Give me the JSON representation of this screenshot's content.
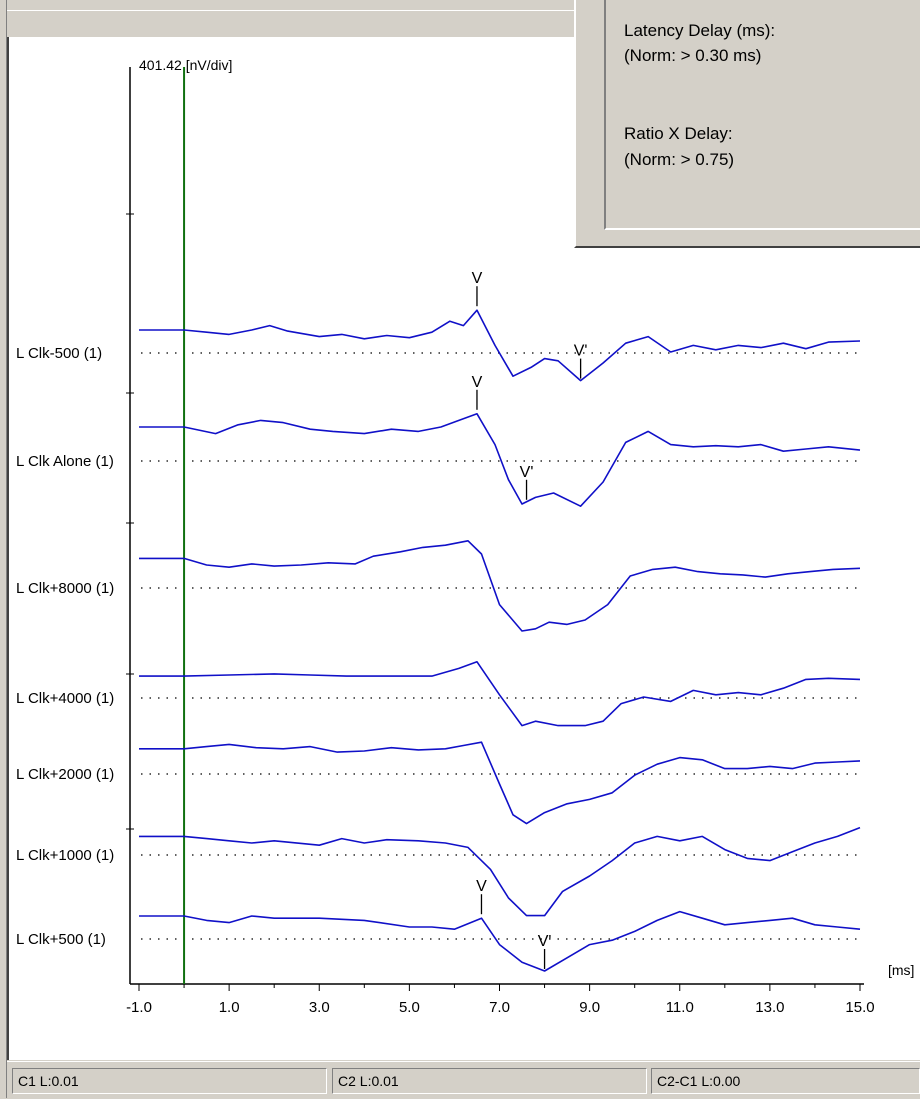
{
  "info_panel": {
    "latency_label": "Latency Delay (ms):",
    "latency_norm": "(Norm: > 0.30 ms)",
    "ratio_label": "Ratio X Delay:",
    "ratio_norm": "(Norm: > 0.75)"
  },
  "status_bar": {
    "c1": "C1 L:0.01",
    "c2": "C2 L:0.01",
    "diff": "C2-C1 L:0.00"
  },
  "chart_data": {
    "type": "line",
    "scale_label": "401.42 [nV/div]",
    "xunit_label": "[ms]",
    "xlim": [
      -1.0,
      15.0
    ],
    "x_ticks": [
      "-1.0",
      "1.0",
      "3.0",
      "5.0",
      "7.0",
      "9.0",
      "11.0",
      "13.0",
      "15.0"
    ],
    "cursor_ms": 0.0,
    "line_color": "#1010c8",
    "cursor_color": "#107010",
    "series": [
      {
        "name": "L Clk-500 (1)",
        "baseline": 0.0,
        "x": [
          -1.0,
          0.0,
          0.5,
          1.0,
          1.5,
          1.9,
          2.3,
          3.0,
          3.5,
          4.0,
          4.5,
          5.0,
          5.5,
          5.9,
          6.2,
          6.5,
          6.9,
          7.3,
          7.7,
          8.0,
          8.3,
          8.8,
          9.3,
          9.8,
          10.3,
          10.8,
          11.3,
          11.8,
          12.3,
          12.8,
          13.3,
          13.8,
          14.3,
          15.0
        ],
        "y": [
          0.5,
          0.5,
          0.4,
          0.3,
          0.5,
          0.7,
          0.45,
          0.2,
          0.3,
          0.1,
          0.25,
          0.15,
          0.4,
          0.9,
          0.7,
          1.4,
          -0.2,
          -1.6,
          -1.2,
          -0.8,
          -0.9,
          -1.8,
          -1.0,
          -0.1,
          0.2,
          -0.5,
          -0.2,
          -0.4,
          -0.2,
          -0.3,
          -0.1,
          -0.35,
          -0.05,
          0.0
        ],
        "peaks": [
          {
            "label": "V",
            "x": 6.5
          },
          {
            "label": "V'",
            "x": 8.8
          }
        ]
      },
      {
        "name": "L Clk Alone (1)",
        "baseline": 0.0,
        "x": [
          -1.0,
          0.0,
          0.7,
          1.2,
          1.7,
          2.2,
          2.8,
          3.3,
          4.0,
          4.6,
          5.2,
          5.7,
          6.1,
          6.5,
          6.9,
          7.2,
          7.5,
          7.8,
          8.2,
          8.8,
          9.3,
          9.8,
          10.3,
          10.8,
          11.3,
          11.8,
          12.3,
          12.8,
          13.3,
          13.8,
          14.3,
          15.0
        ],
        "y": [
          1.0,
          1.0,
          0.7,
          1.1,
          1.3,
          1.2,
          0.9,
          0.8,
          0.7,
          0.9,
          0.8,
          1.0,
          1.3,
          1.6,
          0.2,
          -1.4,
          -2.5,
          -2.2,
          -2.0,
          -2.6,
          -1.5,
          0.3,
          0.8,
          0.2,
          0.1,
          0.15,
          0.1,
          0.2,
          -0.1,
          0.0,
          0.1,
          -0.05
        ],
        "peaks": [
          {
            "label": "V",
            "x": 6.5
          },
          {
            "label": "V'",
            "x": 7.6
          }
        ]
      },
      {
        "name": "L Clk+8000 (1)",
        "baseline": 0.0,
        "x": [
          -1.0,
          0.0,
          0.5,
          1.0,
          1.5,
          2.0,
          2.6,
          3.2,
          3.8,
          4.2,
          4.8,
          5.3,
          5.8,
          6.3,
          6.6,
          7.0,
          7.5,
          7.8,
          8.1,
          8.5,
          8.9,
          9.4,
          9.9,
          10.4,
          10.9,
          11.4,
          11.9,
          12.4,
          12.9,
          13.4,
          13.9,
          14.4,
          15.0
        ],
        "y": [
          0.8,
          0.8,
          0.5,
          0.4,
          0.55,
          0.45,
          0.5,
          0.6,
          0.55,
          0.9,
          1.1,
          1.3,
          1.4,
          1.6,
          1.0,
          -1.3,
          -2.5,
          -2.4,
          -2.1,
          -2.2,
          -2.0,
          -1.3,
          0.0,
          0.3,
          0.4,
          0.2,
          0.1,
          0.05,
          -0.05,
          0.1,
          0.2,
          0.3,
          0.35
        ],
        "peaks": []
      },
      {
        "name": "L Clk+4000 (1)",
        "baseline": 0.0,
        "x": [
          -1.0,
          0.0,
          1.0,
          2.0,
          2.8,
          3.6,
          4.5,
          5.5,
          6.1,
          6.5,
          7.0,
          7.5,
          7.8,
          8.3,
          8.9,
          9.3,
          9.7,
          10.2,
          10.8,
          11.3,
          11.8,
          12.3,
          12.8,
          13.3,
          13.8,
          14.3,
          15.0
        ],
        "y": [
          0.45,
          0.45,
          0.5,
          0.55,
          0.5,
          0.45,
          0.45,
          0.45,
          0.8,
          1.1,
          -0.4,
          -1.8,
          -1.6,
          -1.8,
          -1.8,
          -1.6,
          -0.8,
          -0.5,
          -0.7,
          -0.2,
          -0.4,
          -0.3,
          -0.4,
          -0.1,
          0.3,
          0.35,
          0.3
        ],
        "peaks": []
      },
      {
        "name": "L Clk+2000 (1)",
        "baseline": 0.0,
        "x": [
          -1.0,
          0.0,
          0.5,
          1.0,
          1.6,
          2.2,
          2.8,
          3.4,
          4.0,
          4.6,
          5.2,
          5.8,
          6.2,
          6.6,
          7.0,
          7.3,
          7.6,
          8.0,
          8.5,
          9.0,
          9.5,
          10.0,
          10.5,
          11.0,
          11.5,
          12.0,
          12.5,
          13.0,
          13.5,
          14.0,
          14.5,
          15.0
        ],
        "y": [
          0.6,
          0.6,
          0.7,
          0.8,
          0.65,
          0.6,
          0.7,
          0.45,
          0.5,
          0.65,
          0.55,
          0.6,
          0.75,
          0.9,
          -1.0,
          -2.4,
          -2.8,
          -2.3,
          -1.9,
          -1.7,
          -1.4,
          -0.6,
          -0.1,
          0.2,
          0.1,
          -0.3,
          -0.3,
          -0.2,
          -0.3,
          -0.05,
          0.0,
          0.05
        ],
        "peaks": []
      },
      {
        "name": "L Clk+1000 (1)",
        "baseline": 0.0,
        "x": [
          -1.0,
          0.0,
          0.5,
          1.0,
          1.5,
          2.0,
          3.0,
          3.5,
          4.0,
          4.5,
          5.2,
          5.8,
          6.3,
          6.8,
          7.2,
          7.6,
          8.0,
          8.4,
          9.0,
          9.5,
          10.0,
          10.5,
          11.0,
          11.5,
          12.0,
          12.5,
          13.0,
          13.5,
          14.0,
          14.5,
          15.0
        ],
        "y": [
          0.3,
          0.3,
          0.2,
          0.1,
          0.0,
          0.1,
          -0.1,
          0.2,
          0.0,
          0.15,
          0.1,
          0.0,
          -0.2,
          -1.2,
          -2.5,
          -3.3,
          -3.3,
          -2.2,
          -1.5,
          -0.8,
          0.0,
          0.3,
          0.1,
          0.3,
          -0.3,
          -0.7,
          -0.8,
          -0.4,
          0.0,
          0.3,
          0.7
        ],
        "peaks": []
      },
      {
        "name": "L Clk+500 (1)",
        "baseline": 0.0,
        "x": [
          -1.0,
          0.0,
          0.5,
          1.0,
          1.5,
          2.0,
          3.0,
          4.0,
          5.0,
          5.5,
          6.0,
          6.6,
          7.0,
          7.5,
          8.0,
          8.5,
          9.0,
          9.5,
          10.0,
          10.5,
          11.0,
          11.5,
          12.0,
          12.5,
          13.0,
          13.5,
          14.0,
          14.5,
          15.0
        ],
        "y": [
          0.5,
          0.5,
          0.3,
          0.2,
          0.5,
          0.4,
          0.4,
          0.3,
          0.0,
          0.0,
          -0.1,
          0.4,
          -0.8,
          -1.6,
          -2.0,
          -1.4,
          -0.8,
          -0.6,
          -0.2,
          0.3,
          0.7,
          0.4,
          0.1,
          0.2,
          0.3,
          0.4,
          0.1,
          0.0,
          -0.1
        ],
        "peaks": [
          {
            "label": "V",
            "x": 6.6
          },
          {
            "label": "V'",
            "x": 8.0
          }
        ]
      }
    ]
  }
}
